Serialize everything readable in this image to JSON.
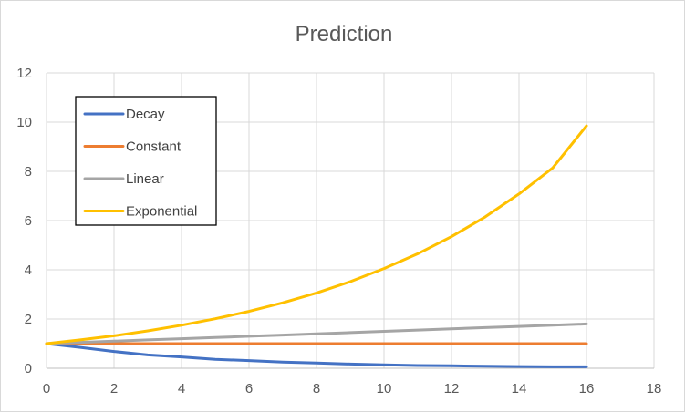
{
  "chart_data": {
    "type": "line",
    "title": "Prediction",
    "xlabel": "",
    "ylabel": "",
    "xlim": [
      0,
      18
    ],
    "ylim": [
      0,
      12
    ],
    "x_ticks": [
      "0",
      "2",
      "4",
      "6",
      "8",
      "10",
      "12",
      "14",
      "16",
      "18"
    ],
    "y_ticks": [
      "0",
      "2",
      "4",
      "6",
      "8",
      "10",
      "12"
    ],
    "grid": true,
    "legend_position": "top-left",
    "x": [
      0,
      1,
      2,
      3,
      4,
      5,
      6,
      7,
      8,
      9,
      10,
      11,
      12,
      13,
      14,
      15,
      16
    ],
    "series": [
      {
        "name": "Decay",
        "color": "#4472c4",
        "values": [
          1.0,
          0.85,
          0.68,
          0.54,
          0.46,
          0.36,
          0.31,
          0.25,
          0.21,
          0.17,
          0.14,
          0.11,
          0.1,
          0.08,
          0.07,
          0.06,
          0.06
        ]
      },
      {
        "name": "Constant",
        "color": "#ed7d31",
        "values": [
          1,
          1,
          1,
          1,
          1,
          1,
          1,
          1,
          1,
          1,
          1,
          1,
          1,
          1,
          1,
          1,
          1
        ]
      },
      {
        "name": "Linear",
        "color": "#a5a5a5",
        "values": [
          1.0,
          1.05,
          1.1,
          1.15,
          1.2,
          1.25,
          1.3,
          1.35,
          1.4,
          1.45,
          1.5,
          1.55,
          1.6,
          1.65,
          1.7,
          1.75,
          1.8
        ]
      },
      {
        "name": "Exponential",
        "color": "#ffc000",
        "values": [
          1.0,
          1.15,
          1.32,
          1.52,
          1.75,
          2.01,
          2.31,
          2.66,
          3.06,
          3.52,
          4.05,
          4.65,
          5.35,
          6.15,
          7.08,
          8.14,
          9.85
        ]
      }
    ]
  }
}
